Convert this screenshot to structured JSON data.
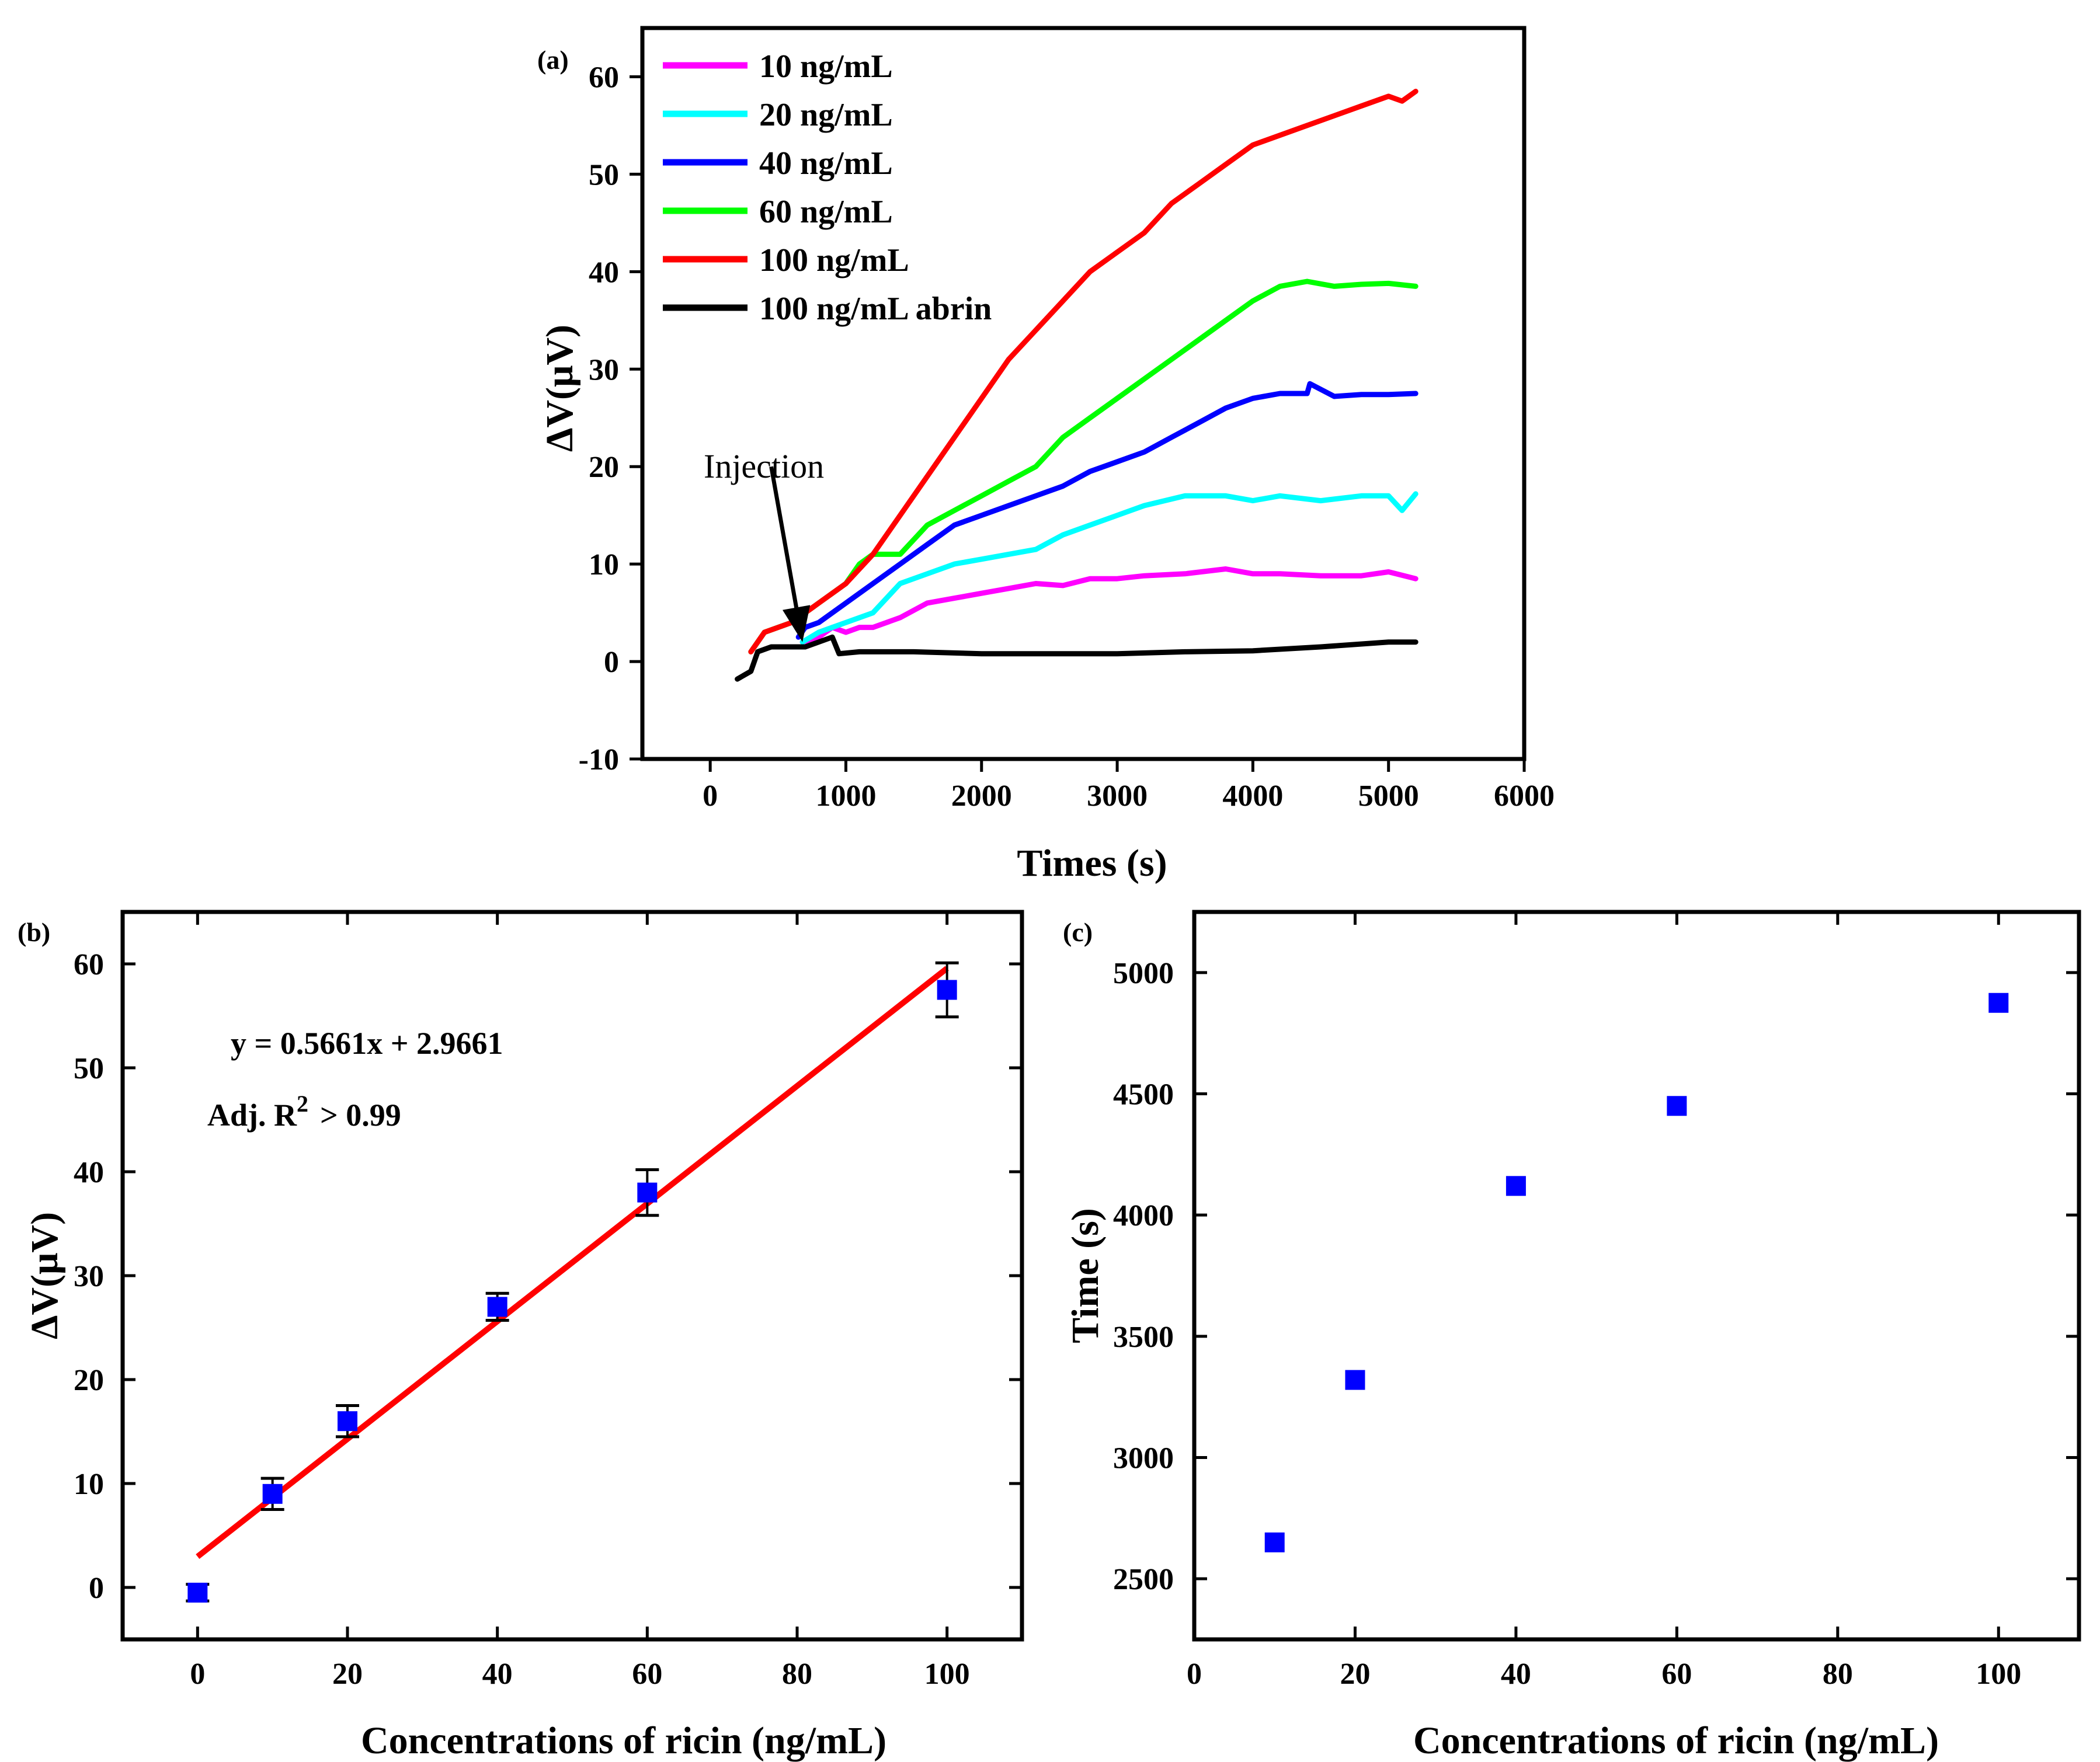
{
  "chart_data": [
    {
      "id": "a",
      "type": "line",
      "panel_label": "(a)",
      "xlabel": "Times (s)",
      "ylabel": "ΔV(μV)",
      "xlim": [
        -500,
        6000
      ],
      "ylim": [
        -10,
        65
      ],
      "xticks": [
        0,
        1000,
        2000,
        3000,
        4000,
        5000,
        6000
      ],
      "yticks": [
        -10,
        0,
        10,
        20,
        30,
        40,
        50,
        60
      ],
      "annotation": {
        "text": "Injection",
        "arrow_from": [
          450,
          20
        ],
        "arrow_to": [
          680,
          2
        ]
      },
      "series": [
        {
          "name": "10 ng/mL",
          "color": "#ff00ff",
          "points": [
            [
              680,
              2
            ],
            [
              800,
              2.5
            ],
            [
              900,
              3.5
            ],
            [
              1000,
              3
            ],
            [
              1100,
              3.5
            ],
            [
              1200,
              3.5
            ],
            [
              1400,
              4.5
            ],
            [
              1600,
              6
            ],
            [
              1800,
              6.5
            ],
            [
              2000,
              7
            ],
            [
              2200,
              7.5
            ],
            [
              2400,
              8
            ],
            [
              2600,
              7.8
            ],
            [
              2800,
              8.5
            ],
            [
              3000,
              8.5
            ],
            [
              3200,
              8.8
            ],
            [
              3500,
              9
            ],
            [
              3800,
              9.5
            ],
            [
              4000,
              9
            ],
            [
              4200,
              9
            ],
            [
              4500,
              8.8
            ],
            [
              4800,
              8.8
            ],
            [
              5000,
              9.2
            ],
            [
              5200,
              8.5
            ]
          ]
        },
        {
          "name": "20 ng/mL",
          "color": "#00ffff",
          "points": [
            [
              680,
              2
            ],
            [
              800,
              3
            ],
            [
              900,
              3.5
            ],
            [
              1000,
              4
            ],
            [
              1200,
              5
            ],
            [
              1400,
              8
            ],
            [
              1600,
              9
            ],
            [
              1800,
              10
            ],
            [
              2000,
              10.5
            ],
            [
              2200,
              11
            ],
            [
              2400,
              11.5
            ],
            [
              2600,
              13
            ],
            [
              2800,
              14
            ],
            [
              3000,
              15
            ],
            [
              3200,
              16
            ],
            [
              3500,
              17
            ],
            [
              3800,
              17
            ],
            [
              4000,
              16.5
            ],
            [
              4200,
              17
            ],
            [
              4500,
              16.5
            ],
            [
              4800,
              17
            ],
            [
              5000,
              17
            ],
            [
              5100,
              15.5
            ],
            [
              5200,
              17.2
            ]
          ]
        },
        {
          "name": "40 ng/mL",
          "color": "#0000ff",
          "points": [
            [
              650,
              2.5
            ],
            [
              700,
              3.5
            ],
            [
              800,
              4
            ],
            [
              1000,
              6
            ],
            [
              1200,
              8
            ],
            [
              1400,
              10
            ],
            [
              1600,
              12
            ],
            [
              1800,
              14
            ],
            [
              2000,
              15
            ],
            [
              2200,
              16
            ],
            [
              2400,
              17
            ],
            [
              2600,
              18
            ],
            [
              2800,
              19.5
            ],
            [
              3000,
              20.5
            ],
            [
              3200,
              21.5
            ],
            [
              3400,
              23
            ],
            [
              3600,
              24.5
            ],
            [
              3800,
              26
            ],
            [
              4000,
              27
            ],
            [
              4200,
              27.5
            ],
            [
              4400,
              27.5
            ],
            [
              4420,
              28.5
            ],
            [
              4600,
              27.2
            ],
            [
              4800,
              27.4
            ],
            [
              5000,
              27.4
            ],
            [
              5200,
              27.5
            ]
          ]
        },
        {
          "name": "60 ng/mL",
          "color": "#00ff00",
          "points": [
            [
              300,
              1
            ],
            [
              350,
              2
            ],
            [
              400,
              3
            ],
            [
              500,
              3.5
            ],
            [
              600,
              4
            ],
            [
              800,
              6
            ],
            [
              1000,
              8
            ],
            [
              1100,
              10
            ],
            [
              1200,
              11
            ],
            [
              1400,
              11
            ],
            [
              1600,
              14
            ],
            [
              1800,
              15.5
            ],
            [
              2000,
              17
            ],
            [
              2200,
              18.5
            ],
            [
              2400,
              20
            ],
            [
              2600,
              23
            ],
            [
              2800,
              25
            ],
            [
              3000,
              27
            ],
            [
              3200,
              29
            ],
            [
              3400,
              31
            ],
            [
              3600,
              33
            ],
            [
              3800,
              35
            ],
            [
              4000,
              37
            ],
            [
              4200,
              38.5
            ],
            [
              4400,
              39
            ],
            [
              4600,
              38.5
            ],
            [
              4800,
              38.7
            ],
            [
              5000,
              38.8
            ],
            [
              5200,
              38.5
            ]
          ]
        },
        {
          "name": "100 ng/mL",
          "color": "#ff0000",
          "points": [
            [
              300,
              1
            ],
            [
              400,
              3
            ],
            [
              600,
              4
            ],
            [
              800,
              6
            ],
            [
              1000,
              8
            ],
            [
              1200,
              11
            ],
            [
              1400,
              15
            ],
            [
              1600,
              19
            ],
            [
              1800,
              23
            ],
            [
              2000,
              27
            ],
            [
              2200,
              31
            ],
            [
              2400,
              34
            ],
            [
              2600,
              37
            ],
            [
              2800,
              40
            ],
            [
              3000,
              42
            ],
            [
              3200,
              44
            ],
            [
              3400,
              47
            ],
            [
              3600,
              49
            ],
            [
              3800,
              51
            ],
            [
              4000,
              53
            ],
            [
              4200,
              54
            ],
            [
              4400,
              55
            ],
            [
              4600,
              56
            ],
            [
              4800,
              57
            ],
            [
              5000,
              58
            ],
            [
              5100,
              57.5
            ],
            [
              5200,
              58.5
            ]
          ]
        },
        {
          "name": "100 ng/mL abrin",
          "color": "#000000",
          "points": [
            [
              200,
              -1.8
            ],
            [
              300,
              -1
            ],
            [
              350,
              1
            ],
            [
              450,
              1.5
            ],
            [
              600,
              1.5
            ],
            [
              700,
              1.5
            ],
            [
              800,
              2
            ],
            [
              900,
              2.5
            ],
            [
              950,
              0.8
            ],
            [
              1100,
              1
            ],
            [
              1500,
              1
            ],
            [
              2000,
              0.8
            ],
            [
              2500,
              0.8
            ],
            [
              3000,
              0.8
            ],
            [
              3500,
              1
            ],
            [
              4000,
              1.1
            ],
            [
              4500,
              1.5
            ],
            [
              5000,
              2
            ],
            [
              5200,
              2
            ]
          ]
        }
      ]
    },
    {
      "id": "b",
      "type": "scatter",
      "panel_label": "(b)",
      "xlabel": "Concentrations of ricin (ng/mL)",
      "ylabel": "ΔV(μV)",
      "xlim": [
        -10,
        110
      ],
      "ylim": [
        -5,
        65
      ],
      "xticks": [
        0,
        20,
        40,
        60,
        80,
        100
      ],
      "yticks": [
        0,
        10,
        20,
        30,
        40,
        50,
        60
      ],
      "x": [
        0,
        10,
        20,
        40,
        60,
        100
      ],
      "y": [
        -0.5,
        9,
        16,
        27,
        38,
        57.5
      ],
      "yerr": [
        0.8,
        1.5,
        1.5,
        1.3,
        2.2,
        2.6
      ],
      "marker_color": "#0000ff",
      "fit": {
        "slope": 0.5661,
        "intercept": 2.9661,
        "color": "#ff0000",
        "equation": "y = 0.5661x + 2.9661",
        "r2_prefix": "Adj. R",
        "r2_exp": "2",
        "r2_suffix": "> 0.99"
      }
    },
    {
      "id": "c",
      "type": "scatter",
      "panel_label": "(c)",
      "xlabel": "Concentrations of ricin (ng/mL)",
      "ylabel": "Time (s)",
      "xlim": [
        0,
        110
      ],
      "ylim": [
        2250,
        5250
      ],
      "xticks": [
        0,
        20,
        40,
        60,
        80,
        100
      ],
      "yticks": [
        2500,
        3000,
        3500,
        4000,
        4500,
        5000
      ],
      "x": [
        10,
        20,
        40,
        60,
        100
      ],
      "y": [
        2650,
        3320,
        4120,
        4450,
        4875
      ],
      "marker_color": "#0000ff"
    }
  ]
}
